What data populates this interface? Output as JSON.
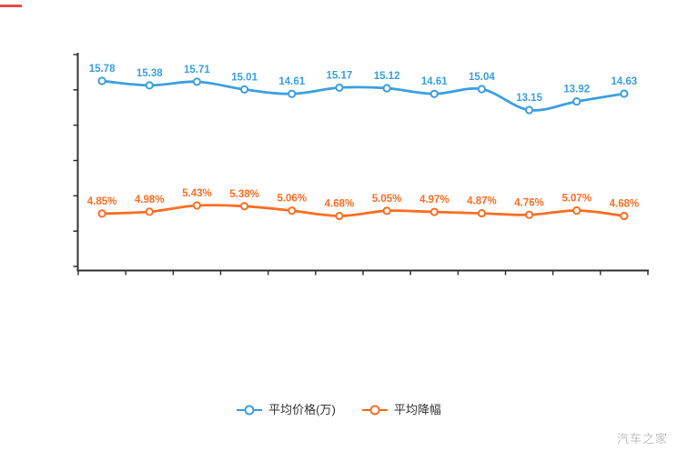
{
  "watermark": "汽车之家",
  "chart_data": {
    "type": "line",
    "smooth": true,
    "point_count": 12,
    "categories": [],
    "x_axis": {
      "labels_visible": false,
      "tick_count": 13
    },
    "y_axis": {
      "labels_visible": false,
      "tick_count": 7
    },
    "legend_position": "bottom",
    "axis_color": "#333333",
    "background": "#ffffff",
    "series": [
      {
        "name": "平均价格(万)",
        "color": "#3ba0e0",
        "unit": "万",
        "values": [
          15.78,
          15.38,
          15.71,
          15.01,
          14.61,
          15.17,
          15.12,
          14.61,
          15.04,
          13.15,
          13.92,
          14.63
        ],
        "labels": [
          "15.78",
          "15.38",
          "15.71",
          "15.01",
          "14.61",
          "15.17",
          "15.12",
          "14.61",
          "15.04",
          "13.15",
          "13.92",
          "14.63"
        ]
      },
      {
        "name": "平均降幅",
        "color": "#fd6e23",
        "unit": "%",
        "values": [
          4.85,
          4.98,
          5.43,
          5.38,
          5.06,
          4.68,
          5.05,
          4.97,
          4.87,
          4.76,
          5.07,
          4.68
        ],
        "labels": [
          "4.85%",
          "4.98%",
          "5.43%",
          "5.38%",
          "5.06%",
          "4.68%",
          "5.05%",
          "4.97%",
          "4.87%",
          "4.76%",
          "5.07%",
          "4.68%"
        ]
      }
    ]
  }
}
